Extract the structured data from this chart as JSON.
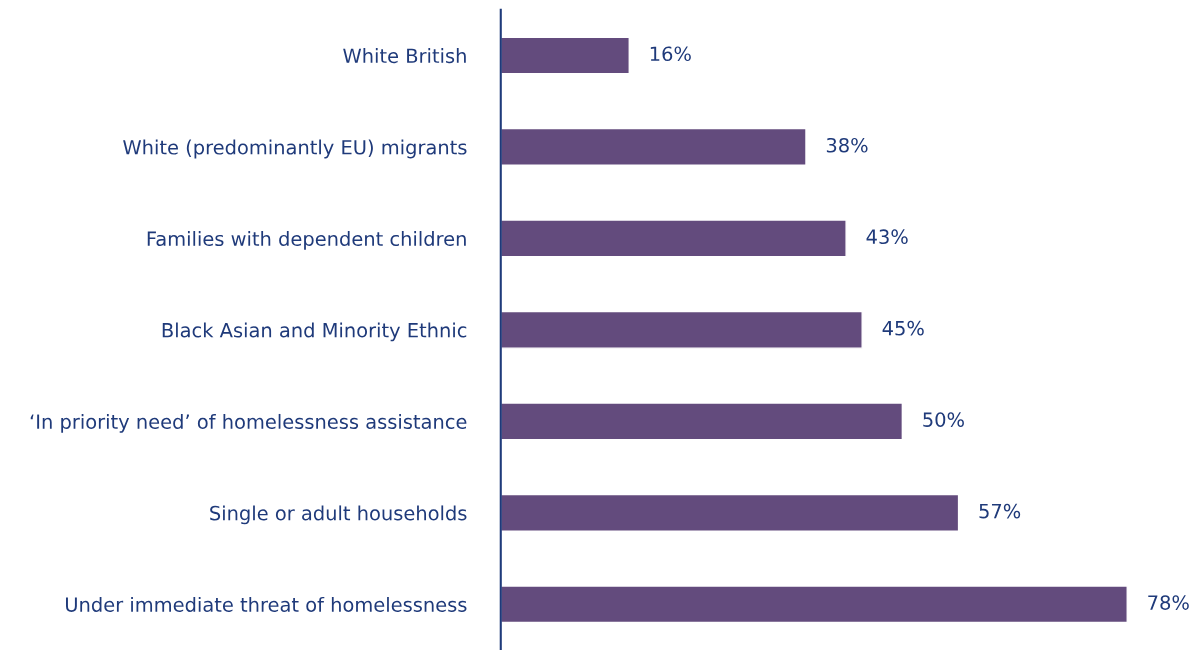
{
  "chart_data": {
    "type": "bar",
    "orientation": "horizontal",
    "categories": [
      "White British",
      "White (predominantly EU) migrants",
      "Families with dependent children",
      "Black Asian and Minority Ethnic",
      "‘In priority need’ of homelessness assistance",
      "Single or adult households",
      "Under immediate threat of homelessness"
    ],
    "values": [
      16,
      38,
      43,
      45,
      50,
      57,
      78
    ],
    "value_labels": [
      "16%",
      "38%",
      "43%",
      "45%",
      "50%",
      "57%",
      "78%"
    ],
    "color": "#634b7d"
  }
}
